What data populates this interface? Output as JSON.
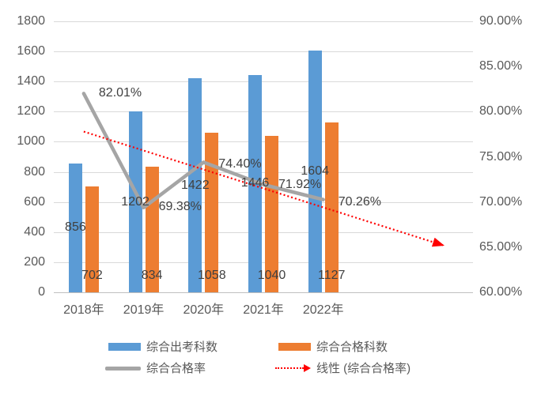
{
  "chart_data": {
    "type": "combo",
    "categories": [
      "2018年",
      "2019年",
      "2020年",
      "2021年",
      "2022年"
    ],
    "series": [
      {
        "name": "综合出考科数",
        "kind": "bar",
        "color": "#5B9BD5",
        "axis": "primary",
        "values": [
          856,
          1202,
          1422,
          1446,
          1604
        ],
        "data_labels": [
          "856",
          "1202",
          "1422",
          "1446",
          "1604"
        ],
        "label_position": "center"
      },
      {
        "name": "综合合格科数",
        "kind": "bar",
        "color": "#ED7D31",
        "axis": "primary",
        "values": [
          702,
          834,
          1058,
          1040,
          1127
        ],
        "data_labels": [
          "702",
          "834",
          "1058",
          "1040",
          "1127"
        ],
        "label_position": "inside_base"
      },
      {
        "name": "综合合格率",
        "kind": "line",
        "color": "#A5A5A5",
        "axis": "secondary",
        "values": [
          82.01,
          69.38,
          74.4,
          71.92,
          70.26
        ],
        "data_labels": [
          "82.01%",
          "69.38%",
          "74.40%",
          "71.92%",
          "70.26%"
        ]
      },
      {
        "name": "线性 (综合合格率)",
        "kind": "trendline",
        "color": "#FF0000",
        "axis": "secondary",
        "style": "dotted_arrow",
        "trend_start_pct": 77.79,
        "trend_end_pct": 65.21,
        "forecast_periods": 2
      }
    ],
    "primary_axis": {
      "min": 0,
      "max": 1800,
      "step": 200,
      "tick_labels": [
        "1800",
        "1600",
        "1400",
        "1200",
        "1000",
        "800",
        "600",
        "400",
        "200",
        "0"
      ]
    },
    "secondary_axis": {
      "min": 60,
      "max": 90,
      "step": 5,
      "tick_labels": [
        "90.00%",
        "85.00%",
        "80.00%",
        "75.00%",
        "70.00%",
        "65.00%",
        "60.00%"
      ]
    },
    "legend": {
      "position": "bottom",
      "entries": [
        {
          "label": "综合出考科数",
          "swatch": "bar",
          "color": "#5B9BD5"
        },
        {
          "label": "综合合格科数",
          "swatch": "bar",
          "color": "#ED7D31"
        },
        {
          "label": "综合合格率",
          "swatch": "line",
          "color": "#A5A5A5"
        },
        {
          "label": "线性 (综合合格率)",
          "swatch": "dotted_arrow",
          "color": "#FF0000"
        }
      ]
    },
    "grid": true
  },
  "colors": {
    "background": "#FFFFFF",
    "gridline": "#D9D9D9",
    "axis_line": "#BFBFBF",
    "axis_text": "#595959",
    "data_label_text": "#404040"
  }
}
